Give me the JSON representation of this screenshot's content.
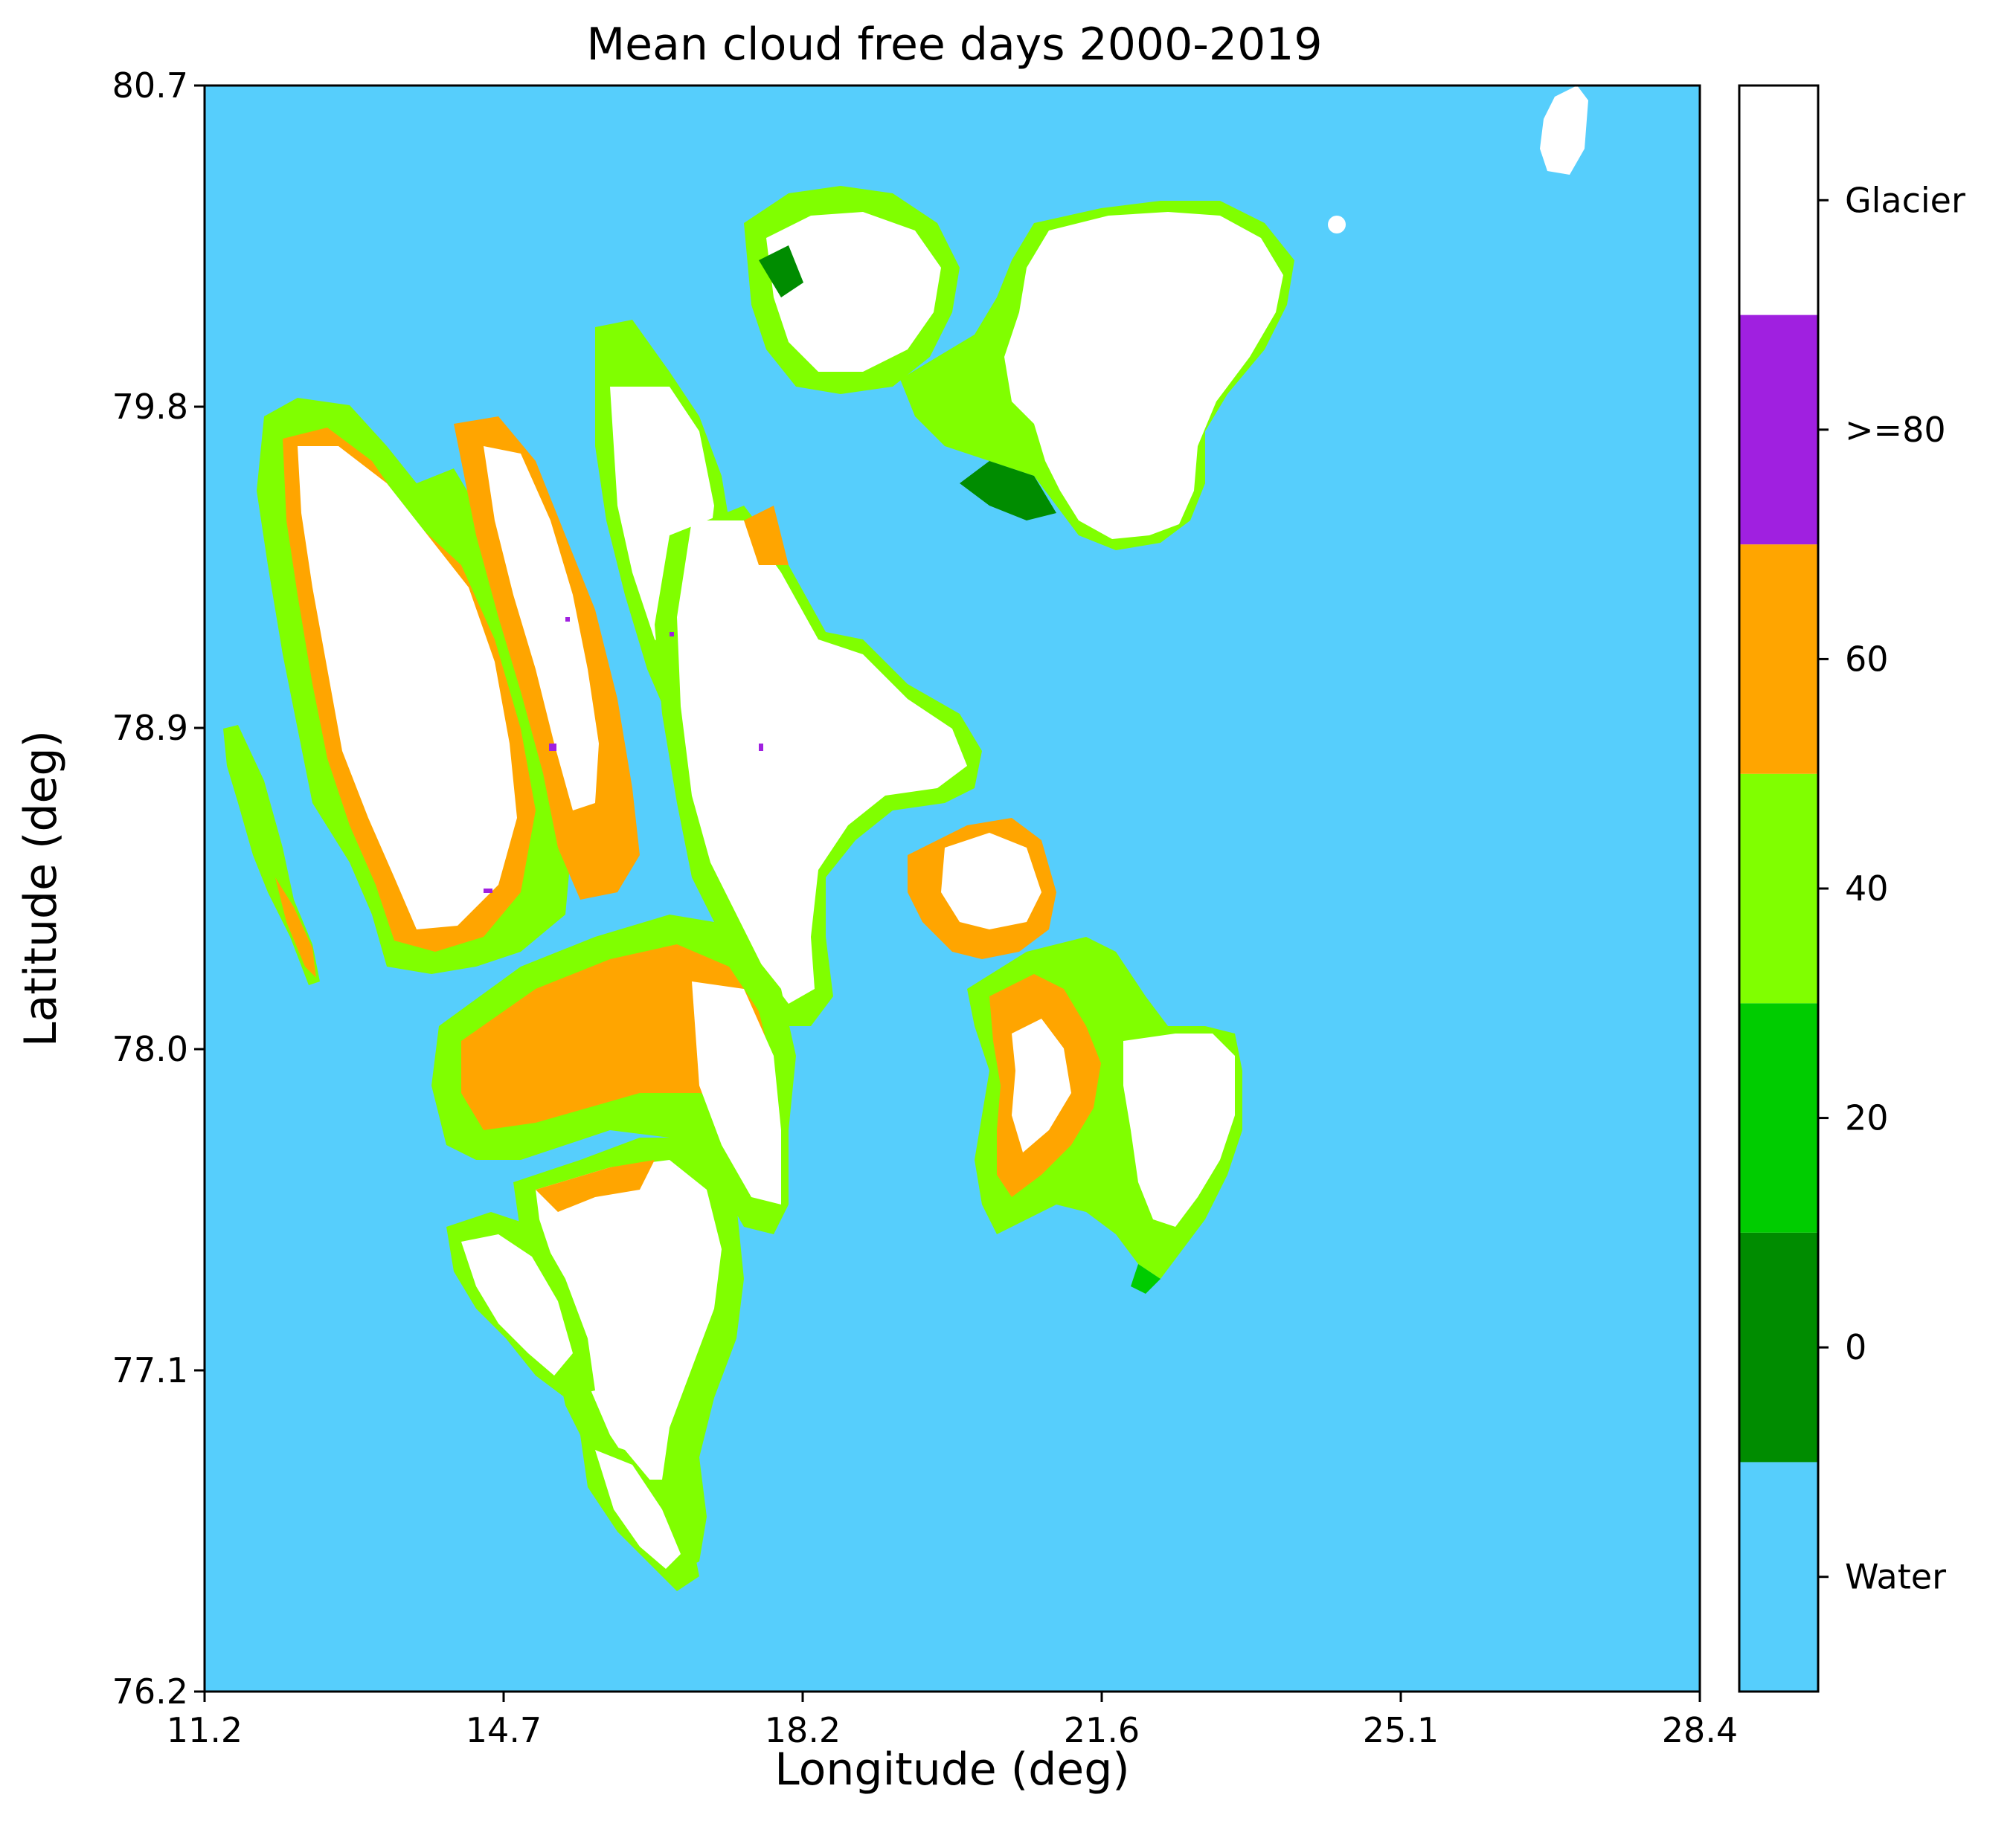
{
  "title": "Mean cloud free days 2000-2019",
  "xlabel": "Longitude (deg)",
  "ylabel": "Latitude (deg)",
  "x_ticks": [
    "11.2",
    "14.7",
    "18.2",
    "21.6",
    "25.1",
    "28.4"
  ],
  "y_ticks": [
    "80.7",
    "79.8",
    "78.9",
    "78.0",
    "77.1",
    "76.2"
  ],
  "colorbar": {
    "categories": [
      {
        "label": "Water",
        "color": "#56cefc"
      },
      {
        "label": "0",
        "color": "#008c00"
      },
      {
        "label": "20",
        "color": "#00cc00"
      },
      {
        "label": "40",
        "color": "#80ff00"
      },
      {
        "label": "60",
        "color": "#ffa500"
      },
      {
        "label": ">=80",
        "color": "#a020e0"
      },
      {
        "label": "Glacier",
        "color": "#ffffff"
      }
    ]
  },
  "map_colors": {
    "water": "#56cefc",
    "glacier": "#ffffff",
    "low": "#008c00",
    "mid": "#00cc00",
    "lime": "#80ff00",
    "orange": "#ffa500",
    "purple": "#a020e0"
  }
}
